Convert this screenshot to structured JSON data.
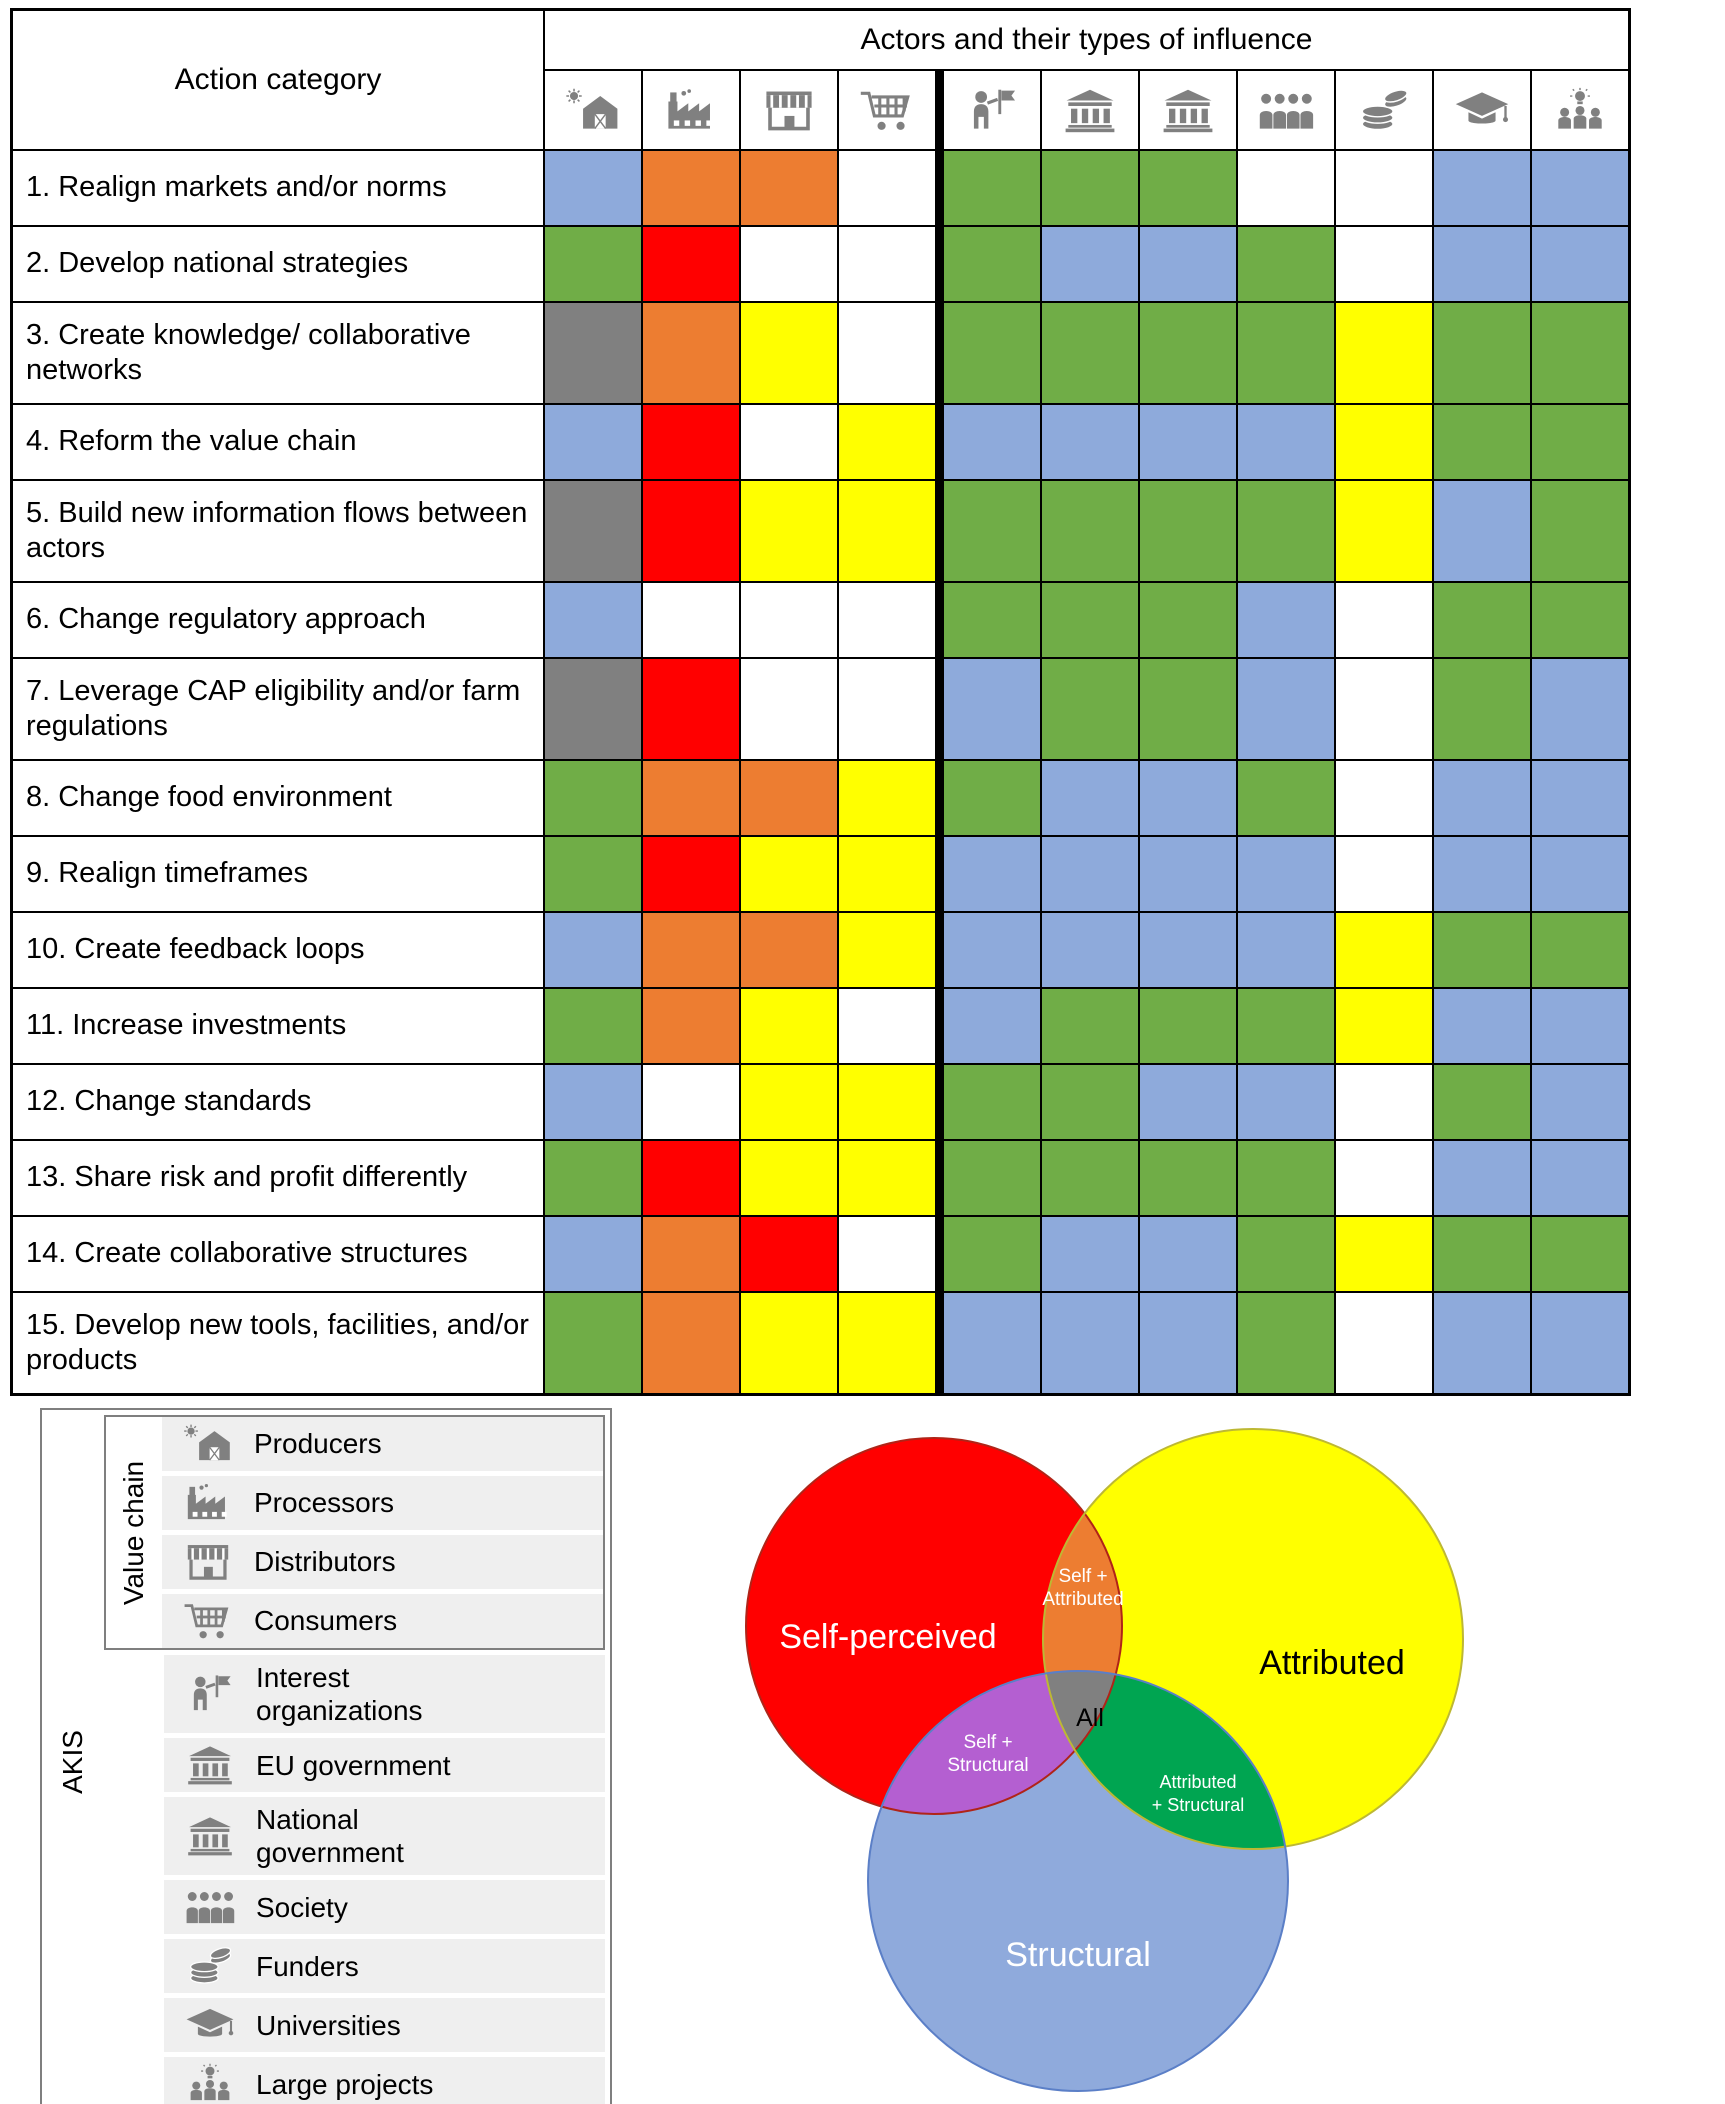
{
  "matrix": {
    "header": {
      "actors_title": "Actors and their types of influence",
      "action_category": "Action category"
    },
    "rows": [
      {
        "label": "1. Realign markets and/or norms",
        "cells": [
          "structural",
          "self_attributed",
          "self_attributed",
          "none",
          "attributed_structural",
          "attributed_structural",
          "attributed_structural",
          "none",
          "none",
          "structural",
          "structural"
        ]
      },
      {
        "label": "2. Develop national strategies",
        "cells": [
          "attributed_structural",
          "self",
          "none",
          "none",
          "attributed_structural",
          "structural",
          "structural",
          "attributed_structural",
          "none",
          "structural",
          "structural"
        ]
      },
      {
        "label": "3. Create knowledge/ collaborative networks",
        "cells": [
          "all",
          "self_attributed",
          "attributed",
          "none",
          "attributed_structural",
          "attributed_structural",
          "attributed_structural",
          "attributed_structural",
          "attributed",
          "attributed_structural",
          "attributed_structural"
        ]
      },
      {
        "label": "4. Reform the value chain",
        "cells": [
          "structural",
          "self",
          "none",
          "attributed",
          "structural",
          "structural",
          "structural",
          "structural",
          "attributed",
          "attributed_structural",
          "attributed_structural"
        ]
      },
      {
        "label": "5. Build new information flows between actors",
        "cells": [
          "all",
          "self",
          "attributed",
          "attributed",
          "attributed_structural",
          "attributed_structural",
          "attributed_structural",
          "attributed_structural",
          "attributed",
          "structural",
          "attributed_structural"
        ]
      },
      {
        "label": "6. Change regulatory approach",
        "cells": [
          "structural",
          "none",
          "none",
          "none",
          "attributed_structural",
          "attributed_structural",
          "attributed_structural",
          "structural",
          "none",
          "attributed_structural",
          "attributed_structural"
        ]
      },
      {
        "label": "7. Leverage CAP eligibility and/or farm regulations",
        "cells": [
          "all",
          "self",
          "none",
          "none",
          "structural",
          "attributed_structural",
          "attributed_structural",
          "structural",
          "none",
          "attributed_structural",
          "structural"
        ]
      },
      {
        "label": "8. Change food environment",
        "cells": [
          "attributed_structural",
          "self_attributed",
          "self_attributed",
          "attributed",
          "attributed_structural",
          "structural",
          "structural",
          "attributed_structural",
          "none",
          "structural",
          "structural"
        ]
      },
      {
        "label": "9. Realign timeframes",
        "cells": [
          "attributed_structural",
          "self",
          "attributed",
          "attributed",
          "structural",
          "structural",
          "structural",
          "structural",
          "none",
          "structural",
          "structural"
        ]
      },
      {
        "label": "10. Create feedback loops",
        "cells": [
          "structural",
          "self_attributed",
          "self_attributed",
          "attributed",
          "structural",
          "structural",
          "structural",
          "structural",
          "attributed",
          "attributed_structural",
          "attributed_structural"
        ]
      },
      {
        "label": "11. Increase investments",
        "cells": [
          "attributed_structural",
          "self_attributed",
          "attributed",
          "none",
          "structural",
          "attributed_structural",
          "attributed_structural",
          "attributed_structural",
          "attributed",
          "structural",
          "structural"
        ]
      },
      {
        "label": "12. Change standards",
        "cells": [
          "structural",
          "none",
          "attributed",
          "attributed",
          "attributed_structural",
          "attributed_structural",
          "structural",
          "structural",
          "none",
          "attributed_structural",
          "structural"
        ]
      },
      {
        "label": "13. Share risk and profit differently",
        "cells": [
          "attributed_structural",
          "self",
          "attributed",
          "attributed",
          "attributed_structural",
          "attributed_structural",
          "attributed_structural",
          "attributed_structural",
          "none",
          "structural",
          "structural"
        ]
      },
      {
        "label": "14. Create collaborative structures",
        "cells": [
          "structural",
          "self_attributed",
          "self",
          "none",
          "attributed_structural",
          "structural",
          "structural",
          "attributed_structural",
          "attributed",
          "attributed_structural",
          "attributed_structural"
        ]
      },
      {
        "label": "15. Develop new tools, facilities, and/or products",
        "cells": [
          "attributed_structural",
          "self_attributed",
          "attributed",
          "attributed",
          "structural",
          "structural",
          "structural",
          "attributed_structural",
          "none",
          "structural",
          "structural"
        ]
      }
    ]
  },
  "actors": [
    {
      "label": "Producers",
      "icon": "barn-icon",
      "group": "Value chain"
    },
    {
      "label": "Processors",
      "icon": "factory-icon",
      "group": "Value chain"
    },
    {
      "label": "Distributors",
      "icon": "storefront-icon",
      "group": "Value chain"
    },
    {
      "label": "Consumers",
      "icon": "shopping-cart-icon",
      "group": "Value chain"
    },
    {
      "label": "Interest organizations",
      "icon": "advocate-flag-icon",
      "group": "AKIS"
    },
    {
      "label": "EU government",
      "icon": "government-building-icon",
      "group": "AKIS"
    },
    {
      "label": "National government",
      "icon": "government-building-icon",
      "group": "AKIS"
    },
    {
      "label": "Society",
      "icon": "people-group-icon",
      "group": "AKIS"
    },
    {
      "label": "Funders",
      "icon": "coins-icon",
      "group": "AKIS"
    },
    {
      "label": "Universities",
      "icon": "graduation-cap-icon",
      "group": "AKIS"
    },
    {
      "label": "Large projects",
      "icon": "team-idea-icon",
      "group": "AKIS"
    }
  ],
  "influence_types": {
    "self": {
      "label": "Self-perceived",
      "color": "#FF0000"
    },
    "attributed": {
      "label": "Attributed",
      "color": "#FFFF00"
    },
    "structural": {
      "label": "Structural",
      "color": "#8EAADB"
    },
    "self_attributed": {
      "label": "Self + Attributed",
      "color": "#ED7D31"
    },
    "self_structural": {
      "label": "Self + Structural",
      "color": "#B45FD1"
    },
    "attributed_structural": {
      "label": "Attributed + Structural",
      "color": "#70AD47"
    },
    "all": {
      "label": "All",
      "color": "#808080"
    },
    "none": {
      "label": "",
      "color": "#FFFFFF"
    }
  },
  "legend": {
    "akis_label": "AKIS",
    "value_chain_label": "Value chain",
    "value_chain_count": 4
  },
  "venn": {
    "labels": {
      "self": "Self-perceived",
      "attributed": "Attributed",
      "structural": "Structural",
      "self_attributed": "Self + Attributed",
      "self_structural": "Self + Structural",
      "attributed_structural": "Attributed + Structural",
      "all": "All"
    },
    "colors": {
      "self": "#FF0000",
      "attributed": "#FFFF00",
      "structural": "#8FAADC",
      "self_attributed": "#ED7D31",
      "self_structural": "#B45FD1",
      "attributed_structural": "#00A551",
      "all": "#808080"
    }
  }
}
